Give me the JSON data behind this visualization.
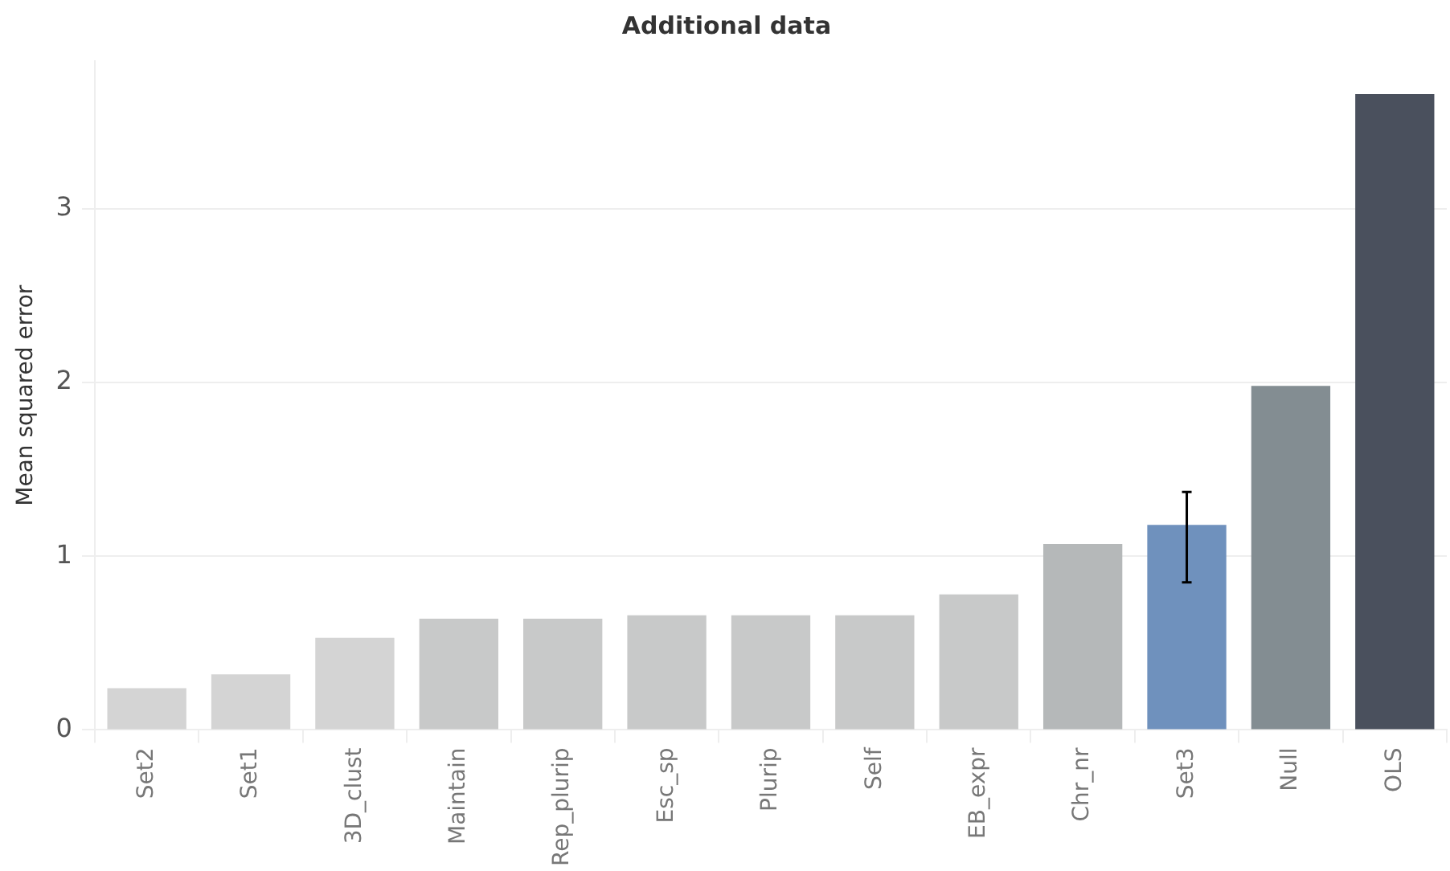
{
  "chart_data": {
    "type": "bar",
    "title": "Additional data",
    "ylabel": "Mean squared error",
    "categories": [
      "Set2",
      "Set1",
      "3D_clust",
      "Maintain",
      "Rep_plurip",
      "Esc_sp",
      "Plurip",
      "Self",
      "EB_expr",
      "Chr_nr",
      "Set3",
      "Null",
      "OLS"
    ],
    "values": [
      0.24,
      0.32,
      0.53,
      0.64,
      0.64,
      0.66,
      0.66,
      0.66,
      0.78,
      1.07,
      1.18,
      1.98,
      3.66
    ],
    "colors": [
      "#d4d4d4",
      "#d4d4d4",
      "#d4d4d4",
      "#c8c9c9",
      "#c8c9c9",
      "#c8c9c9",
      "#c8c9c9",
      "#c8c9c9",
      "#c8c9c9",
      "#b5b8b9",
      "#6f91bd",
      "#838d92",
      "#4a505d"
    ],
    "errors": [
      null,
      null,
      null,
      null,
      null,
      null,
      null,
      null,
      null,
      null,
      [
        0.85,
        1.37
      ],
      null,
      null
    ],
    "ylim": [
      0,
      3.85
    ],
    "yticks": [
      0,
      1,
      2,
      3
    ],
    "grid": "y"
  }
}
